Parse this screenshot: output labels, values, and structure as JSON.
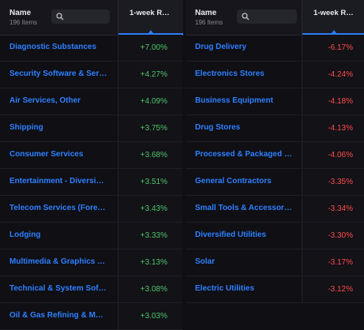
{
  "left_panel": {
    "header": {
      "name_label": "Name",
      "count_label": "196 Items",
      "column_label": "1-week R…"
    },
    "search": {
      "icon": "search-icon"
    },
    "rows": [
      {
        "name": "Diagnostic Substances",
        "value": "+7.00%"
      },
      {
        "name": "Security Software & Ser…",
        "value": "+4.27%"
      },
      {
        "name": "Air Services, Other",
        "value": "+4.09%"
      },
      {
        "name": "Shipping",
        "value": "+3.75%"
      },
      {
        "name": "Consumer Services",
        "value": "+3.68%"
      },
      {
        "name": "Entertainment - Diversi…",
        "value": "+3.51%"
      },
      {
        "name": "Telecom Services (Fore…",
        "value": "+3.43%"
      },
      {
        "name": "Lodging",
        "value": "+3.33%"
      },
      {
        "name": "Multimedia & Graphics …",
        "value": "+3.13%"
      },
      {
        "name": "Technical & System Sof…",
        "value": "+3.08%"
      },
      {
        "name": "Oil & Gas Refining & Mar…",
        "value": "+3.03%"
      }
    ]
  },
  "right_panel": {
    "header": {
      "name_label": "Name",
      "count_label": "196 Items",
      "column_label": "1-week R…"
    },
    "search": {
      "icon": "search-icon"
    },
    "rows": [
      {
        "name": "Drug Delivery",
        "value": "-6.17%"
      },
      {
        "name": "Electronics Stores",
        "value": "-4.24%"
      },
      {
        "name": "Business Equipment",
        "value": "-4.18%"
      },
      {
        "name": "Drug Stores",
        "value": "-4.13%"
      },
      {
        "name": "Processed & Packaged …",
        "value": "-4.06%"
      },
      {
        "name": "General Contractors",
        "value": "-3.35%"
      },
      {
        "name": "Small Tools & Accessori…",
        "value": "-3.34%"
      },
      {
        "name": "Diversified Utilities",
        "value": "-3.30%"
      },
      {
        "name": "Solar",
        "value": "-3.17%"
      },
      {
        "name": "Electric Utilities",
        "value": "-3.12%"
      }
    ]
  },
  "colors": {
    "positive": "#4fc56a",
    "negative": "#ff4b4b",
    "link": "#2f80ff",
    "accent": "#2f7cf6"
  }
}
